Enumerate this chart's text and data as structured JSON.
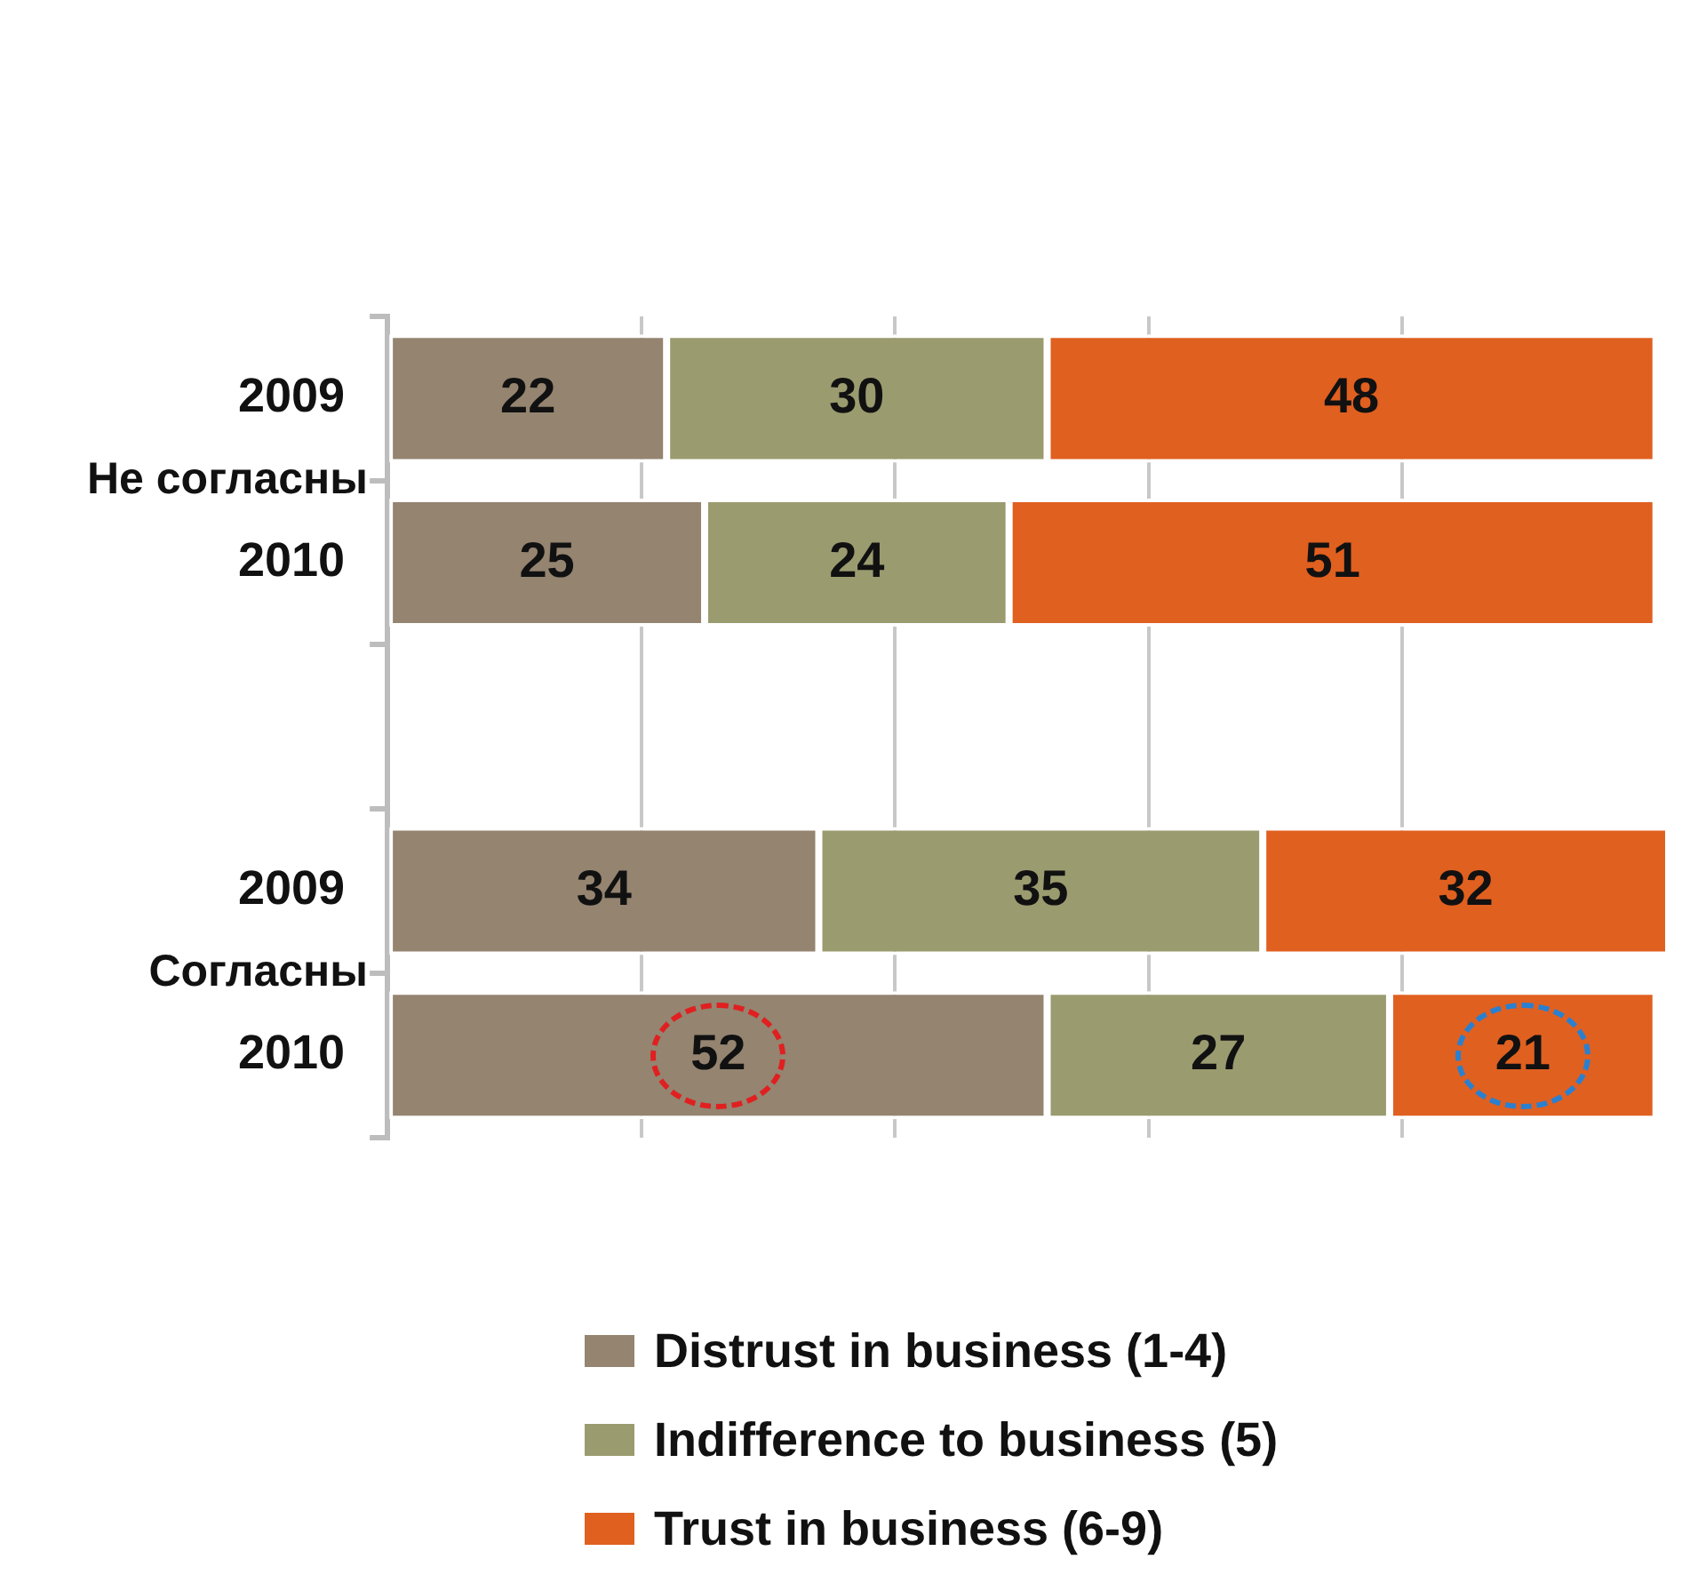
{
  "chart_data": {
    "type": "bar",
    "orientation": "horizontal",
    "stacked": true,
    "categories": [
      "2009",
      "2010",
      null,
      "2009",
      "2010"
    ],
    "series": [
      {
        "name": "Distrust in business (1-4)",
        "color": "#948470",
        "values": [
          22,
          25,
          null,
          34,
          52
        ]
      },
      {
        "name": "Indifference to business (5)",
        "color": "#9a9b6f",
        "values": [
          30,
          24,
          null,
          35,
          27
        ]
      },
      {
        "name": "Trust in business (6-9)",
        "color": "#e06020",
        "values": [
          48,
          51,
          null,
          32,
          21
        ]
      }
    ],
    "xlim": [
      0,
      101
    ],
    "xticks": [
      {
        "value": 0,
        "label": null
      },
      {
        "value": 20,
        "label": null
      },
      {
        "value": 40,
        "label": null
      },
      {
        "value": 60,
        "label": null
      },
      {
        "value": 80,
        "label": null
      }
    ],
    "tick_labels": "y",
    "grid": "x",
    "data_labels": true,
    "legend": "bottom",
    "annotations": [
      "Не согласны",
      "Согласны"
    ]
  }
}
